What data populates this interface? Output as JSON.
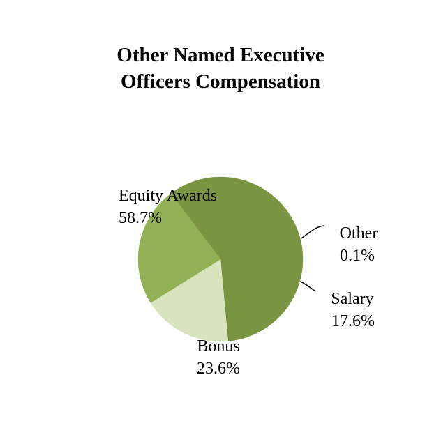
{
  "chart_data": {
    "type": "pie",
    "title_lines": [
      "Other Named Executive",
      "Officers Compensation"
    ],
    "slices": [
      {
        "name": "Equity Awards",
        "value": 58.7,
        "label": "58.7%",
        "color": "#7b9442"
      },
      {
        "name": "Other",
        "value": 0.1,
        "label": "0.1%",
        "color": "#5f7a30"
      },
      {
        "name": "Salary",
        "value": 17.6,
        "label": "17.6%",
        "color": "#d7e4bd"
      },
      {
        "name": "Bonus",
        "value": 23.6,
        "label": "23.6%",
        "color": "#92b054"
      }
    ],
    "start_angle_deg": 233,
    "direction": "clockwise"
  }
}
